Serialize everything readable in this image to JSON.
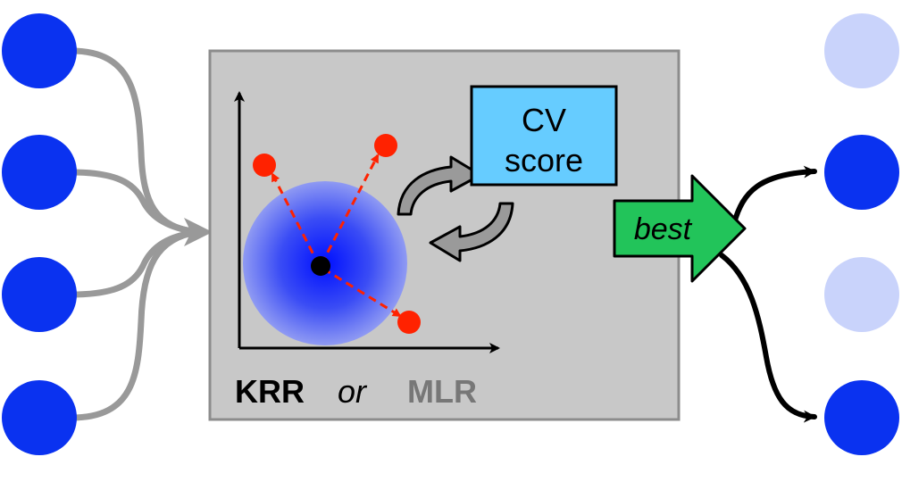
{
  "box": {
    "cv_line1": "CV",
    "cv_line2": "score",
    "method_krr": "KRR",
    "method_or": "or",
    "method_mlr": "MLR"
  },
  "arrow": {
    "best_label": "best"
  },
  "colors": {
    "input_node": "#0a32f0",
    "output_selected": "#0a32f0",
    "output_unselected": "#c9d3fb",
    "panel_fill": "#c8c8c8",
    "panel_stroke": "#8c8c8c",
    "cv_box_fill": "#66ccff",
    "best_arrow_fill": "#22c45a",
    "red_point": "#ff2200",
    "input_line": "#999999",
    "output_line": "#000000"
  },
  "outputs": {
    "selected": [
      false,
      true,
      false,
      true
    ]
  }
}
